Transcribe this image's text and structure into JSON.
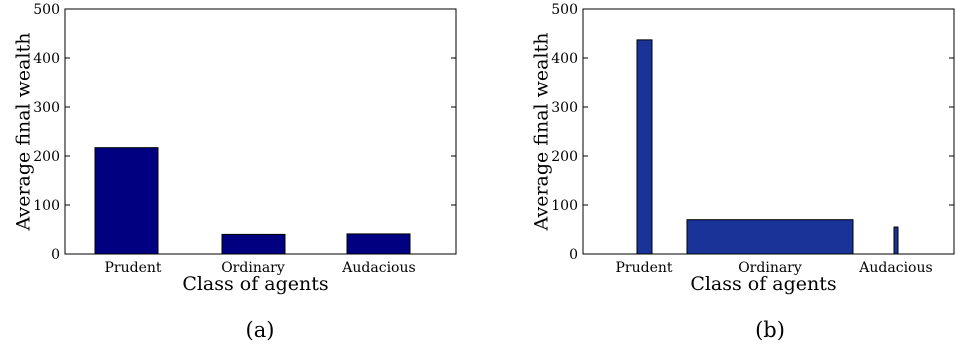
{
  "chart_data": [
    {
      "type": "bar",
      "panel_label": "(a)",
      "xlabel": "Class of agents",
      "ylabel": "Average final wealth",
      "ylim": [
        0,
        500
      ],
      "yticks": [
        0,
        100,
        200,
        300,
        400,
        500
      ],
      "categories": [
        "Prudent",
        "Ordinary",
        "Audacious"
      ],
      "values": [
        217,
        40,
        41
      ],
      "bar_color": "#000080",
      "grid": false
    },
    {
      "type": "bar",
      "panel_label": "(b)",
      "xlabel": "Class of agents",
      "ylabel": "Average final wealth",
      "ylim": [
        0,
        500
      ],
      "yticks": [
        0,
        100,
        200,
        300,
        400,
        500
      ],
      "categories": [
        "Prudent",
        "Ordinary",
        "Audacious"
      ],
      "values": [
        437,
        70,
        55
      ],
      "bar_color": "#1a3399",
      "grid": false
    }
  ]
}
